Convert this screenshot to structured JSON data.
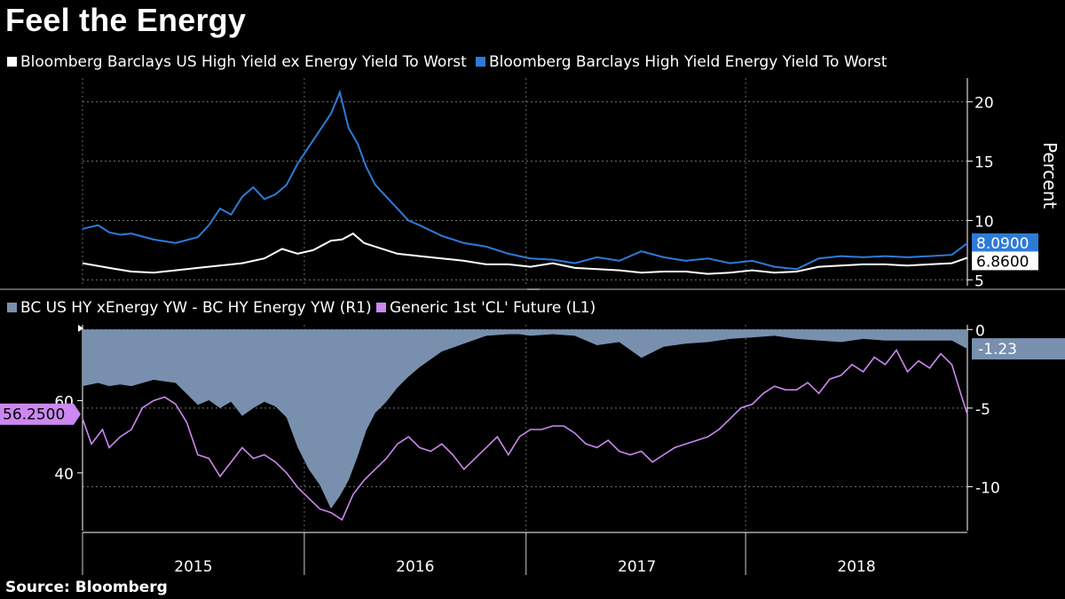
{
  "title": "Feel the Energy",
  "source": "Source: Bloomberg",
  "colors": {
    "ex_energy": "#ffffff",
    "energy": "#2d7bd8",
    "spread_fill": "#7890ae",
    "oil": "#cc88f0"
  },
  "top_legend": {
    "series1": "Bloomberg Barclays US High Yield ex Energy Yield To Worst",
    "series2": "Bloomberg Barclays High Yield Energy Yield To Worst"
  },
  "bottom_legend": {
    "series1": "BC US HY xEnergy YW - BC HY Energy YW (R1)",
    "series2": "Generic 1st 'CL' Future  (L1)"
  },
  "chart_data": [
    {
      "type": "line",
      "panel": "top",
      "ylabel": "Percent",
      "ylim": [
        4.5,
        22
      ],
      "yticks": [
        "5",
        "10",
        "15",
        "20"
      ],
      "xlim": [
        2014.88,
        2018.87
      ],
      "xticks": [
        "2015",
        "2016",
        "2017",
        "2018"
      ],
      "last_value_labels": {
        "energy": "8.0900",
        "ex_energy": "6.8600"
      },
      "series": [
        {
          "name": "Bloomberg Barclays US High Yield ex Energy Yield To Worst",
          "x": [
            2014.88,
            2015.0,
            2015.1,
            2015.2,
            2015.3,
            2015.4,
            2015.5,
            2015.6,
            2015.7,
            2015.78,
            2015.85,
            2015.92,
            2016.0,
            2016.05,
            2016.1,
            2016.15,
            2016.2,
            2016.3,
            2016.4,
            2016.5,
            2016.6,
            2016.7,
            2016.8,
            2016.85,
            2016.9,
            2017.0,
            2017.1,
            2017.2,
            2017.3,
            2017.4,
            2017.5,
            2017.6,
            2017.7,
            2017.8,
            2017.9,
            2018.0,
            2018.1,
            2018.2,
            2018.3,
            2018.4,
            2018.5,
            2018.6,
            2018.7,
            2018.8,
            2018.87
          ],
          "values": [
            6.4,
            6.0,
            5.7,
            5.6,
            5.8,
            6.0,
            6.2,
            6.4,
            6.8,
            7.6,
            7.2,
            7.5,
            8.3,
            8.4,
            8.9,
            8.1,
            7.8,
            7.2,
            7.0,
            6.8,
            6.6,
            6.3,
            6.3,
            6.2,
            6.1,
            6.4,
            6.0,
            5.9,
            5.8,
            5.6,
            5.7,
            5.7,
            5.5,
            5.6,
            5.8,
            5.6,
            5.7,
            6.1,
            6.2,
            6.3,
            6.3,
            6.2,
            6.3,
            6.4,
            6.86
          ]
        },
        {
          "name": "Bloomberg Barclays High Yield Energy Yield To Worst",
          "x": [
            2014.88,
            2014.95,
            2015.0,
            2015.05,
            2015.1,
            2015.2,
            2015.3,
            2015.4,
            2015.45,
            2015.5,
            2015.55,
            2015.6,
            2015.65,
            2015.7,
            2015.75,
            2015.8,
            2015.85,
            2015.9,
            2015.95,
            2016.0,
            2016.04,
            2016.08,
            2016.12,
            2016.16,
            2016.2,
            2016.25,
            2016.3,
            2016.35,
            2016.4,
            2016.5,
            2016.6,
            2016.7,
            2016.8,
            2016.85,
            2016.9,
            2017.0,
            2017.1,
            2017.2,
            2017.3,
            2017.4,
            2017.5,
            2017.6,
            2017.7,
            2017.8,
            2017.9,
            2018.0,
            2018.1,
            2018.2,
            2018.3,
            2018.4,
            2018.5,
            2018.6,
            2018.7,
            2018.8,
            2018.87
          ],
          "values": [
            9.3,
            9.6,
            9.0,
            8.8,
            8.9,
            8.4,
            8.1,
            8.6,
            9.6,
            11.0,
            10.5,
            12.0,
            12.8,
            11.8,
            12.2,
            13.0,
            14.8,
            16.2,
            17.6,
            19.0,
            20.8,
            17.8,
            16.5,
            14.5,
            13.0,
            12.0,
            11.0,
            10.0,
            9.6,
            8.7,
            8.1,
            7.8,
            7.2,
            7.0,
            6.8,
            6.7,
            6.4,
            6.9,
            6.6,
            7.4,
            6.9,
            6.6,
            6.8,
            6.4,
            6.6,
            6.1,
            5.9,
            6.8,
            7.0,
            6.9,
            7.0,
            6.9,
            7.0,
            7.1,
            8.09
          ]
        }
      ]
    },
    {
      "type": "area",
      "panel": "bottom",
      "ylim_left": [
        24,
        81
      ],
      "yticks_left": [
        "40",
        "60"
      ],
      "ylim_right": [
        -12.8,
        0.3
      ],
      "yticks_right": [
        "0",
        "-5",
        "-10"
      ],
      "last_value_labels": {
        "oil": "56.2500",
        "spread": "-1.23"
      },
      "series": [
        {
          "name": "BC US HY xEnergy YW - BC HY Energy YW (R1)",
          "axis": "right",
          "x": [
            2014.88,
            2014.95,
            2015.0,
            2015.05,
            2015.1,
            2015.2,
            2015.3,
            2015.4,
            2015.45,
            2015.5,
            2015.55,
            2015.6,
            2015.65,
            2015.7,
            2015.75,
            2015.8,
            2015.85,
            2015.9,
            2015.95,
            2016.0,
            2016.04,
            2016.08,
            2016.12,
            2016.16,
            2016.2,
            2016.25,
            2016.3,
            2016.35,
            2016.4,
            2016.5,
            2016.6,
            2016.7,
            2016.8,
            2016.85,
            2016.9,
            2017.0,
            2017.1,
            2017.2,
            2017.3,
            2017.4,
            2017.5,
            2017.6,
            2017.7,
            2017.8,
            2017.9,
            2018.0,
            2018.1,
            2018.2,
            2018.3,
            2018.4,
            2018.5,
            2018.6,
            2018.7,
            2018.8,
            2018.87
          ],
          "values": [
            -3.6,
            -3.4,
            -3.6,
            -3.5,
            -3.6,
            -3.2,
            -3.4,
            -4.8,
            -4.5,
            -5.0,
            -4.6,
            -5.5,
            -5.0,
            -4.6,
            -4.9,
            -5.6,
            -7.5,
            -8.9,
            -9.9,
            -11.4,
            -10.6,
            -9.6,
            -8.1,
            -6.4,
            -5.3,
            -4.6,
            -3.7,
            -3.0,
            -2.4,
            -1.4,
            -0.9,
            -0.4,
            -0.3,
            -0.3,
            -0.4,
            -0.3,
            -0.4,
            -1.0,
            -0.8,
            -1.8,
            -1.1,
            -0.9,
            -0.8,
            -0.6,
            -0.5,
            -0.4,
            -0.6,
            -0.7,
            -0.8,
            -0.6,
            -0.7,
            -0.7,
            -0.7,
            -0.7,
            -1.23
          ]
        },
        {
          "name": "Generic 1st 'CL' Future  (L1)",
          "axis": "left",
          "x": [
            2014.88,
            2014.92,
            2014.97,
            2015.0,
            2015.05,
            2015.1,
            2015.15,
            2015.2,
            2015.25,
            2015.3,
            2015.35,
            2015.4,
            2015.45,
            2015.5,
            2015.55,
            2015.6,
            2015.65,
            2015.7,
            2015.75,
            2015.8,
            2015.85,
            2015.9,
            2015.95,
            2016.0,
            2016.05,
            2016.1,
            2016.15,
            2016.2,
            2016.25,
            2016.3,
            2016.35,
            2016.4,
            2016.45,
            2016.5,
            2016.55,
            2016.6,
            2016.65,
            2016.7,
            2016.75,
            2016.8,
            2016.85,
            2016.9,
            2016.95,
            2017.0,
            2017.05,
            2017.1,
            2017.15,
            2017.2,
            2017.25,
            2017.3,
            2017.35,
            2017.4,
            2017.45,
            2017.5,
            2017.55,
            2017.6,
            2017.65,
            2017.7,
            2017.75,
            2017.8,
            2017.85,
            2017.9,
            2017.95,
            2018.0,
            2018.05,
            2018.1,
            2018.15,
            2018.2,
            2018.25,
            2018.3,
            2018.35,
            2018.4,
            2018.45,
            2018.5,
            2018.55,
            2018.6,
            2018.65,
            2018.7,
            2018.75,
            2018.8,
            2018.85,
            2018.87
          ],
          "values": [
            55,
            48,
            52,
            47,
            50,
            52,
            58,
            60,
            61,
            59,
            54,
            45,
            44,
            39,
            43,
            47,
            44,
            45,
            43,
            40,
            36,
            33,
            30,
            29,
            27,
            34,
            38,
            41,
            44,
            48,
            50,
            47,
            46,
            48,
            45,
            41,
            44,
            47,
            50,
            45,
            50,
            52,
            52,
            53,
            53,
            51,
            48,
            47,
            49,
            46,
            45,
            46,
            43,
            45,
            47,
            48,
            49,
            50,
            52,
            55,
            58,
            59,
            62,
            64,
            63,
            63,
            65,
            62,
            66,
            67,
            70,
            68,
            72,
            70,
            74,
            68,
            71,
            69,
            73,
            70,
            60,
            56.25
          ]
        }
      ]
    }
  ]
}
